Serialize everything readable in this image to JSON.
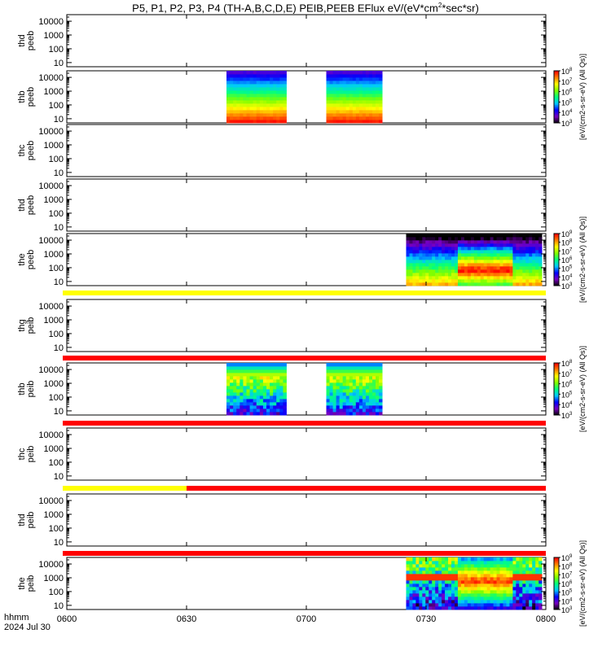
{
  "title": "P5, P1, P2, P3, P4 (TH-A,B,C,D,E) PEIB,PEEB EFlux eV/(eV*cm2*sec*sr)",
  "title_parts": {
    "pre": "P5, P1, P2, P3, P4 (TH-A,B,C,D,E) PEIB,PEEB EFlux eV/(eV*cm",
    "sup": "2",
    "post": "*sec*sr)"
  },
  "footer": {
    "hhmm": "hhmm",
    "date": "2024 Jul 30"
  },
  "colorbar": {
    "label": "[eV/(cm2-s-sr-eV) (All Qs)]",
    "tick_labels": [
      "10",
      "10",
      "10",
      "10",
      "10",
      "10",
      "10"
    ],
    "tick_exponents": [
      "3",
      "4",
      "5",
      "6",
      "7",
      "8",
      "9"
    ],
    "colors": [
      "#000000",
      "#7a00c0",
      "#0000ff",
      "#00c8ff",
      "#00ff80",
      "#80ff00",
      "#ffff00",
      "#ff8000",
      "#ff0000"
    ]
  },
  "chart_data": {
    "type": "heatmap",
    "description_axes": "spectrogram panels, x = UT time, y = energy (eV, log)",
    "x": {
      "ticks": [
        "0600",
        "0630",
        "0700",
        "0730",
        "0800"
      ],
      "range": [
        "06:00",
        "08:00"
      ]
    },
    "y": {
      "scale": "log",
      "ticks": [
        "10",
        "100",
        "1000",
        "10000"
      ],
      "range": [
        5,
        30000
      ]
    },
    "panels": [
      {
        "line1": "thd",
        "line2": "peeb",
        "data_intervals": [],
        "colorbar": false,
        "bar": null
      },
      {
        "line1": "thb",
        "line2": "peeb",
        "data_intervals": [
          [
            "06:40",
            "06:55"
          ],
          [
            "07:05",
            "07:19"
          ]
        ],
        "kind": "electron_low",
        "colorbar": true,
        "colorbar_max_exp": 8,
        "bar": null
      },
      {
        "line1": "thc",
        "line2": "peeb",
        "data_intervals": [],
        "colorbar": false,
        "bar": null
      },
      {
        "line1": "thd",
        "line2": "peeb",
        "data_intervals": [],
        "colorbar": false,
        "bar": null
      },
      {
        "line1": "the",
        "line2": "peeb",
        "data_intervals": [
          [
            "07:25",
            "07:59"
          ]
        ],
        "kind": "electron_sheet",
        "colorbar": true,
        "colorbar_max_exp": 9,
        "bar": {
          "segments": [
            [
              "06:00",
              "08:00",
              "#ffff00"
            ]
          ]
        }
      },
      {
        "line1": "thg",
        "line2": "peib",
        "data_intervals": [],
        "colorbar": false,
        "bar": {
          "segments": [
            [
              "06:00",
              "08:00",
              "#ff0000"
            ]
          ]
        }
      },
      {
        "line1": "thb",
        "line2": "peib",
        "data_intervals": [
          [
            "06:40",
            "06:55"
          ],
          [
            "07:05",
            "07:19"
          ]
        ],
        "kind": "ion_low",
        "colorbar": true,
        "colorbar_max_exp": 8,
        "bar": {
          "segments": [
            [
              "06:00",
              "08:00",
              "#ff0000"
            ]
          ]
        }
      },
      {
        "line1": "thc",
        "line2": "peib",
        "data_intervals": [],
        "colorbar": false,
        "bar": {
          "segments": [
            [
              "06:00",
              "06:30",
              "#ffff00"
            ],
            [
              "06:30",
              "08:00",
              "#ff0000"
            ]
          ]
        }
      },
      {
        "line1": "thd",
        "line2": "peib",
        "data_intervals": [],
        "colorbar": false,
        "bar": {
          "segments": [
            [
              "06:00",
              "08:00",
              "#ff0000"
            ]
          ]
        }
      },
      {
        "line1": "the",
        "line2": "peib",
        "data_intervals": [
          [
            "07:25",
            "07:59"
          ]
        ],
        "kind": "ion_sheet",
        "colorbar": true,
        "colorbar_max_exp": 9,
        "bar": null
      }
    ]
  }
}
